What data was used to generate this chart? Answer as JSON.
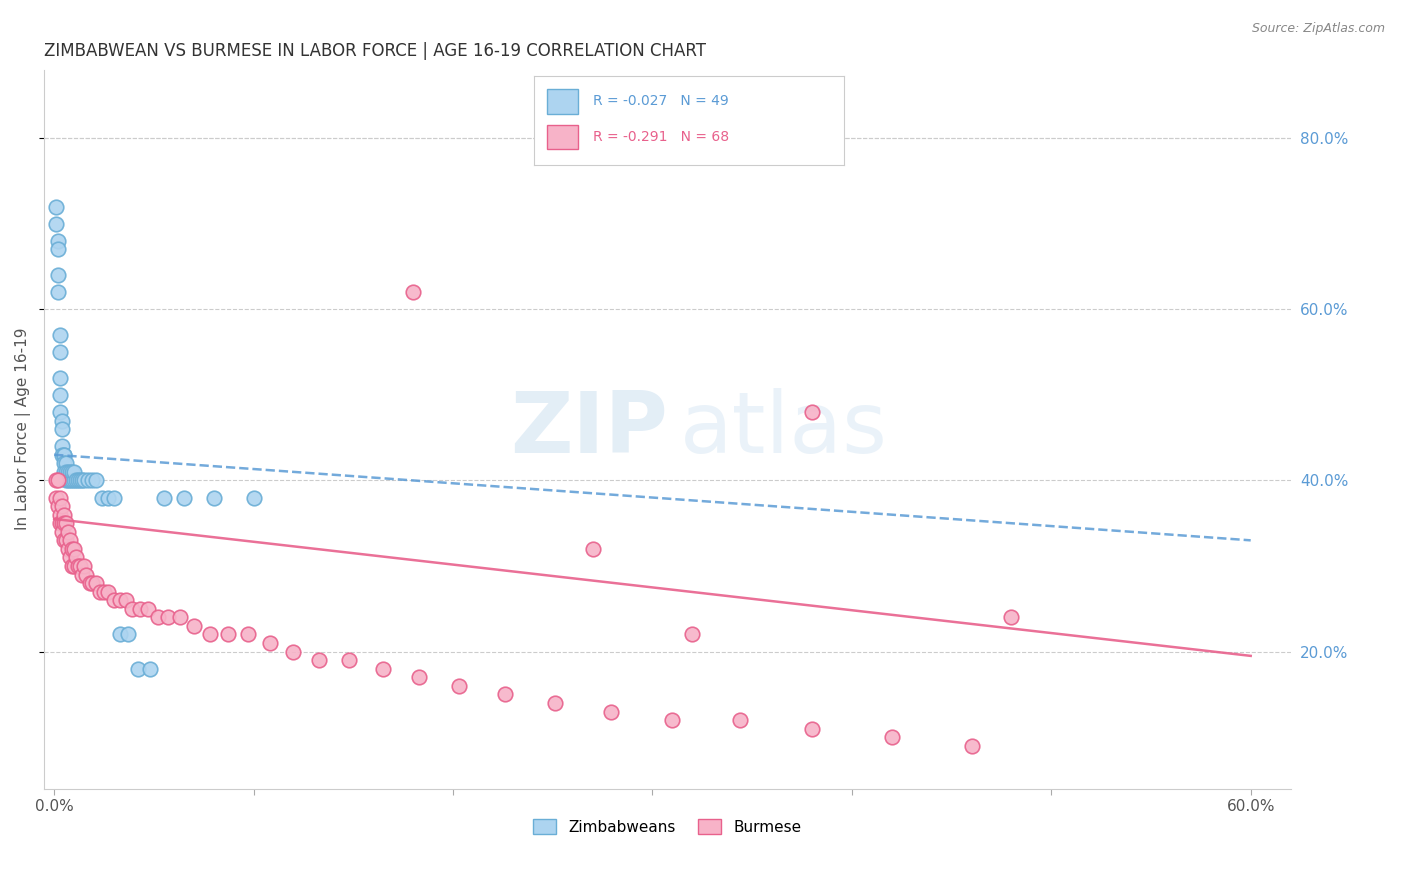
{
  "title": "ZIMBABWEAN VS BURMESE IN LABOR FORCE | AGE 16-19 CORRELATION CHART",
  "source": "Source: ZipAtlas.com",
  "ylabel": "In Labor Force | Age 16-19",
  "xlim": [
    -0.005,
    0.62
  ],
  "ylim": [
    0.04,
    0.88
  ],
  "zim_R": -0.027,
  "zim_N": 49,
  "bur_R": -0.291,
  "bur_N": 68,
  "zim_color": "#add4f0",
  "bur_color": "#f7b3c8",
  "zim_edge_color": "#6aaed6",
  "bur_edge_color": "#e8618c",
  "zim_line_color": "#5b9bd5",
  "bur_line_color": "#e8618c",
  "watermark_zip_color": "#cce0f0",
  "watermark_atlas_color": "#cce0f0",
  "background_color": "#ffffff",
  "grid_color": "#cccccc",
  "legend_label_zim": "Zimbabweans",
  "legend_label_bur": "Burmese",
  "zim_x": [
    0.001,
    0.001,
    0.002,
    0.002,
    0.002,
    0.002,
    0.003,
    0.003,
    0.003,
    0.003,
    0.003,
    0.004,
    0.004,
    0.004,
    0.004,
    0.005,
    0.005,
    0.005,
    0.005,
    0.006,
    0.006,
    0.006,
    0.007,
    0.007,
    0.008,
    0.008,
    0.009,
    0.009,
    0.01,
    0.01,
    0.011,
    0.012,
    0.013,
    0.014,
    0.015,
    0.017,
    0.019,
    0.021,
    0.024,
    0.027,
    0.03,
    0.033,
    0.037,
    0.042,
    0.048,
    0.055,
    0.065,
    0.08,
    0.1
  ],
  "zim_y": [
    0.72,
    0.7,
    0.68,
    0.67,
    0.64,
    0.62,
    0.57,
    0.55,
    0.52,
    0.5,
    0.48,
    0.47,
    0.46,
    0.44,
    0.43,
    0.43,
    0.43,
    0.42,
    0.41,
    0.42,
    0.41,
    0.4,
    0.41,
    0.4,
    0.41,
    0.4,
    0.4,
    0.41,
    0.4,
    0.41,
    0.4,
    0.4,
    0.4,
    0.4,
    0.4,
    0.4,
    0.4,
    0.4,
    0.38,
    0.38,
    0.38,
    0.22,
    0.22,
    0.18,
    0.18,
    0.38,
    0.38,
    0.38,
    0.38
  ],
  "bur_x": [
    0.001,
    0.001,
    0.002,
    0.002,
    0.003,
    0.003,
    0.003,
    0.004,
    0.004,
    0.004,
    0.005,
    0.005,
    0.005,
    0.006,
    0.006,
    0.007,
    0.007,
    0.008,
    0.008,
    0.009,
    0.009,
    0.01,
    0.01,
    0.011,
    0.012,
    0.013,
    0.014,
    0.015,
    0.016,
    0.018,
    0.019,
    0.021,
    0.023,
    0.025,
    0.027,
    0.03,
    0.033,
    0.036,
    0.039,
    0.043,
    0.047,
    0.052,
    0.057,
    0.063,
    0.07,
    0.078,
    0.087,
    0.097,
    0.108,
    0.12,
    0.133,
    0.148,
    0.165,
    0.183,
    0.203,
    0.226,
    0.251,
    0.279,
    0.31,
    0.344,
    0.38,
    0.42,
    0.46,
    0.18,
    0.38,
    0.27,
    0.32,
    0.48
  ],
  "bur_y": [
    0.4,
    0.38,
    0.4,
    0.37,
    0.38,
    0.36,
    0.35,
    0.37,
    0.35,
    0.34,
    0.36,
    0.35,
    0.33,
    0.35,
    0.33,
    0.34,
    0.32,
    0.33,
    0.31,
    0.32,
    0.3,
    0.32,
    0.3,
    0.31,
    0.3,
    0.3,
    0.29,
    0.3,
    0.29,
    0.28,
    0.28,
    0.28,
    0.27,
    0.27,
    0.27,
    0.26,
    0.26,
    0.26,
    0.25,
    0.25,
    0.25,
    0.24,
    0.24,
    0.24,
    0.23,
    0.22,
    0.22,
    0.22,
    0.21,
    0.2,
    0.19,
    0.19,
    0.18,
    0.17,
    0.16,
    0.15,
    0.14,
    0.13,
    0.12,
    0.12,
    0.11,
    0.1,
    0.09,
    0.62,
    0.48,
    0.32,
    0.22,
    0.24
  ],
  "zim_trend_start": 0.43,
  "zim_trend_end": 0.33,
  "bur_trend_start": 0.355,
  "bur_trend_end": 0.195
}
